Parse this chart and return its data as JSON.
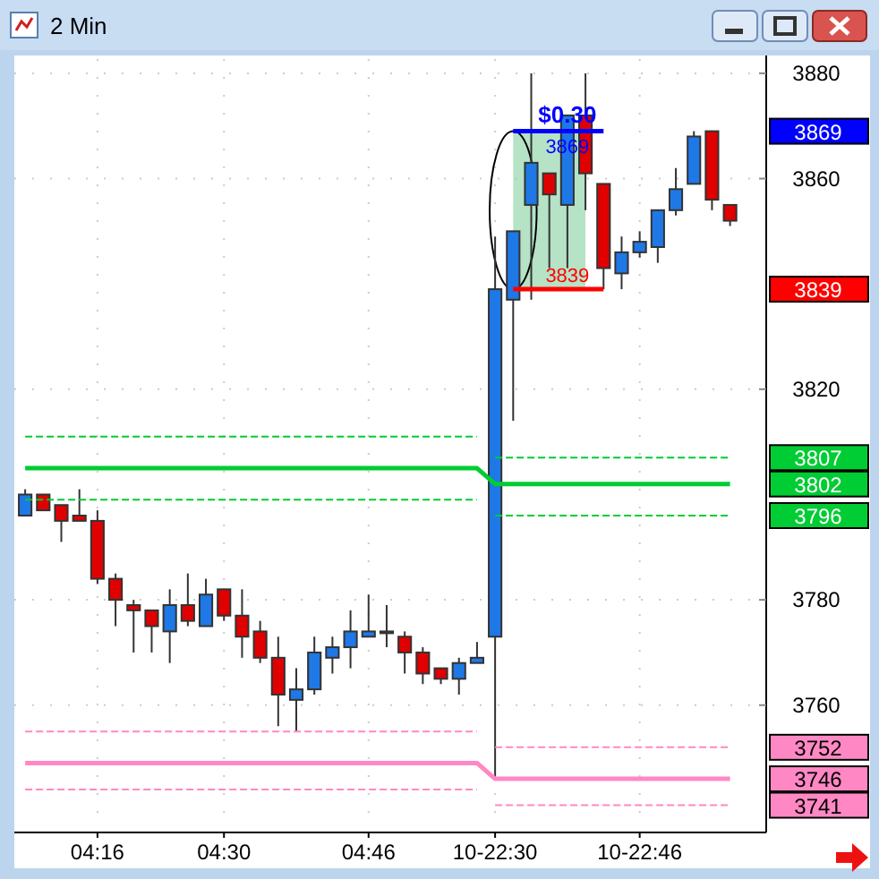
{
  "chart_data": {
    "type": "candlestick",
    "title": "2 Min",
    "categories": [
      null,
      null,
      null,
      null,
      "04:16",
      null,
      null,
      null,
      null,
      null,
      null,
      "04:30",
      null,
      null,
      null,
      null,
      null,
      null,
      null,
      "04:46",
      null,
      null,
      null,
      null,
      null,
      null,
      "10-22:30",
      null,
      null,
      null,
      null,
      null,
      null,
      null,
      "10-22:46",
      null,
      null,
      null,
      null,
      null
    ],
    "ohlc": [
      [
        3796,
        3801,
        3796,
        3800
      ],
      [
        3800,
        3800,
        3797,
        3797
      ],
      [
        3798,
        3798,
        3791,
        3795
      ],
      [
        3796,
        3801,
        3795,
        3795
      ],
      [
        3795,
        3797,
        3783,
        3784
      ],
      [
        3784,
        3785,
        3775,
        3780
      ],
      [
        3779,
        3780,
        3770,
        3778
      ],
      [
        3778,
        3778,
        3770,
        3775
      ],
      [
        3774,
        3782,
        3768,
        3779
      ],
      [
        3779,
        3785,
        3775,
        3776
      ],
      [
        3775,
        3784,
        3775,
        3781
      ],
      [
        3782,
        3782,
        3776,
        3777
      ],
      [
        3777,
        3782,
        3769,
        3773
      ],
      [
        3774,
        3776,
        3768,
        3769
      ],
      [
        3769,
        3773,
        3756,
        3762
      ],
      [
        3761,
        3767,
        3755,
        3763
      ],
      [
        3763,
        3773,
        3762,
        3770
      ],
      [
        3769,
        3773,
        3766,
        3771
      ],
      [
        3771,
        3778,
        3767,
        3774
      ],
      [
        3773,
        3781,
        3773,
        3774
      ],
      [
        3774,
        3779,
        3771,
        3774
      ],
      [
        3773,
        3774,
        3766,
        3770
      ],
      [
        3770,
        3771,
        3764,
        3766
      ],
      [
        3767,
        3767,
        3764,
        3765
      ],
      [
        3765,
        3769,
        3762,
        3768
      ],
      [
        3768,
        3772,
        3768,
        3769
      ],
      [
        3773,
        3849,
        3746,
        3839
      ],
      [
        3837,
        3850,
        3814,
        3850
      ],
      [
        3855,
        3880,
        3837,
        3863
      ],
      [
        3861,
        3861,
        3843,
        3857
      ],
      [
        3855,
        3872,
        3843,
        3872
      ],
      [
        3872,
        3880,
        3854,
        3861
      ],
      [
        3859,
        3859,
        3839,
        3843
      ],
      [
        3842,
        3849,
        3839,
        3846
      ],
      [
        3846,
        3850,
        3845,
        3848
      ],
      [
        3847,
        3854,
        3844,
        3854
      ],
      [
        3854,
        3862,
        3853,
        3858
      ],
      [
        3859,
        3869,
        3859,
        3868
      ],
      [
        3869,
        3869,
        3854,
        3856
      ],
      [
        3855,
        3855,
        3851,
        3852
      ]
    ],
    "series": [
      {
        "type": "line",
        "name": "3802",
        "color": "#00cc33",
        "line_style": "solid",
        "values": [
          3805,
          3805,
          3805,
          3805,
          3805,
          3805,
          3805,
          3805,
          3805,
          3805,
          3805,
          3805,
          3805,
          3805,
          3805,
          3805,
          3805,
          3805,
          3805,
          3805,
          3805,
          3805,
          3805,
          3805,
          3805,
          3805,
          3802,
          3802,
          3802,
          3802,
          3802,
          3802,
          3802,
          3802,
          3802,
          3802,
          3802,
          3802,
          3802,
          3802
        ]
      },
      {
        "type": "line",
        "color": "#00cc33",
        "line_style": "dashed",
        "values": [
          3811,
          3811,
          3811,
          3811,
          3811,
          3811,
          3811,
          3811,
          3811,
          3811,
          3811,
          3811,
          3811,
          3811,
          3811,
          3811,
          3811,
          3811,
          3811,
          3811,
          3811,
          3811,
          3811,
          3811,
          3811,
          3811,
          null,
          null,
          null,
          null,
          null,
          null,
          null,
          null,
          null,
          null,
          null,
          null,
          null,
          null
        ]
      },
      {
        "type": "line",
        "name": "3807",
        "color": "#00cc33",
        "line_style": "dashed",
        "values": [
          null,
          null,
          null,
          null,
          null,
          null,
          null,
          null,
          null,
          null,
          null,
          null,
          null,
          null,
          null,
          null,
          null,
          null,
          null,
          null,
          null,
          null,
          null,
          null,
          null,
          null,
          3807,
          3807,
          3807,
          3807,
          3807,
          3807,
          3807,
          3807,
          3807,
          3807,
          3807,
          3807,
          3807,
          3807
        ]
      },
      {
        "type": "line",
        "color": "#00cc33",
        "line_style": "dashed",
        "values": [
          3799,
          3799,
          3799,
          3799,
          3799,
          3799,
          3799,
          3799,
          3799,
          3799,
          3799,
          3799,
          3799,
          3799,
          3799,
          3799,
          3799,
          3799,
          3799,
          3799,
          3799,
          3799,
          3799,
          3799,
          3799,
          3799,
          null,
          null,
          null,
          null,
          null,
          null,
          null,
          null,
          null,
          null,
          null,
          null,
          null,
          null
        ]
      },
      {
        "type": "line",
        "name": "3796",
        "color": "#00cc33",
        "line_style": "dashed",
        "values": [
          null,
          null,
          null,
          null,
          null,
          null,
          null,
          null,
          null,
          null,
          null,
          null,
          null,
          null,
          null,
          null,
          null,
          null,
          null,
          null,
          null,
          null,
          null,
          null,
          null,
          null,
          3796,
          3796,
          3796,
          3796,
          3796,
          3796,
          3796,
          3796,
          3796,
          3796,
          3796,
          3796,
          3796,
          3796
        ]
      },
      {
        "type": "line",
        "name": "3746",
        "color": "#ff88c4",
        "line_style": "solid",
        "values": [
          3749,
          3749,
          3749,
          3749,
          3749,
          3749,
          3749,
          3749,
          3749,
          3749,
          3749,
          3749,
          3749,
          3749,
          3749,
          3749,
          3749,
          3749,
          3749,
          3749,
          3749,
          3749,
          3749,
          3749,
          3749,
          3749,
          3746,
          3746,
          3746,
          3746,
          3746,
          3746,
          3746,
          3746,
          3746,
          3746,
          3746,
          3746,
          3746,
          3746
        ]
      },
      {
        "type": "line",
        "color": "#ff88c4",
        "line_style": "dashed",
        "values": [
          3755,
          3755,
          3755,
          3755,
          3755,
          3755,
          3755,
          3755,
          3755,
          3755,
          3755,
          3755,
          3755,
          3755,
          3755,
          3755,
          3755,
          3755,
          3755,
          3755,
          3755,
          3755,
          3755,
          3755,
          3755,
          3755,
          null,
          null,
          null,
          null,
          null,
          null,
          null,
          null,
          null,
          null,
          null,
          null,
          null,
          null
        ]
      },
      {
        "type": "line",
        "name": "3752",
        "color": "#ff88c4",
        "line_style": "dashed",
        "values": [
          null,
          null,
          null,
          null,
          null,
          null,
          null,
          null,
          null,
          null,
          null,
          null,
          null,
          null,
          null,
          null,
          null,
          null,
          null,
          null,
          null,
          null,
          null,
          null,
          null,
          null,
          3752,
          3752,
          3752,
          3752,
          3752,
          3752,
          3752,
          3752,
          3752,
          3752,
          3752,
          3752,
          3752,
          3752
        ]
      },
      {
        "type": "line",
        "color": "#ff88c4",
        "line_style": "dashed",
        "values": [
          3744,
          3744,
          3744,
          3744,
          3744,
          3744,
          3744,
          3744,
          3744,
          3744,
          3744,
          3744,
          3744,
          3744,
          3744,
          3744,
          3744,
          3744,
          3744,
          3744,
          3744,
          3744,
          3744,
          3744,
          3744,
          3744,
          null,
          null,
          null,
          null,
          null,
          null,
          null,
          null,
          null,
          null,
          null,
          null,
          null,
          null
        ]
      },
      {
        "type": "line",
        "name": "3741",
        "color": "#ff88c4",
        "line_style": "dashed",
        "values": [
          null,
          null,
          null,
          null,
          null,
          null,
          null,
          null,
          null,
          null,
          null,
          null,
          null,
          null,
          null,
          null,
          null,
          null,
          null,
          null,
          null,
          null,
          null,
          null,
          null,
          null,
          3741,
          3741,
          3741,
          3741,
          3741,
          3741,
          3741,
          3741,
          3741,
          3741,
          3741,
          3741,
          3741,
          3741
        ]
      },
      {
        "type": "line",
        "name": "3869",
        "color": "#0000ff",
        "line_style": "solid",
        "values": [
          null,
          null,
          null,
          null,
          null,
          null,
          null,
          null,
          null,
          null,
          null,
          null,
          null,
          null,
          null,
          null,
          null,
          null,
          null,
          null,
          null,
          null,
          null,
          null,
          null,
          null,
          null,
          3869,
          3869,
          3869,
          3869,
          3869,
          3869,
          null,
          null,
          null,
          null,
          null,
          null,
          null
        ]
      },
      {
        "type": "line",
        "name": "3839",
        "color": "#ff0000",
        "line_style": "solid",
        "values": [
          null,
          null,
          null,
          null,
          null,
          null,
          null,
          null,
          null,
          null,
          null,
          null,
          null,
          null,
          null,
          null,
          null,
          null,
          null,
          null,
          null,
          null,
          null,
          null,
          null,
          null,
          null,
          3839,
          3839,
          3839,
          3839,
          3839,
          3839,
          null,
          null,
          null,
          null,
          null,
          null,
          null
        ]
      }
    ],
    "annotations": [
      "$0.30",
      "3869",
      "3839"
    ],
    "ylim": [
      3736.5,
      3882.7
    ],
    "yticks": [
      3760,
      3780,
      3820,
      3860,
      3880
    ],
    "grid": true,
    "legend": "right"
  }
}
